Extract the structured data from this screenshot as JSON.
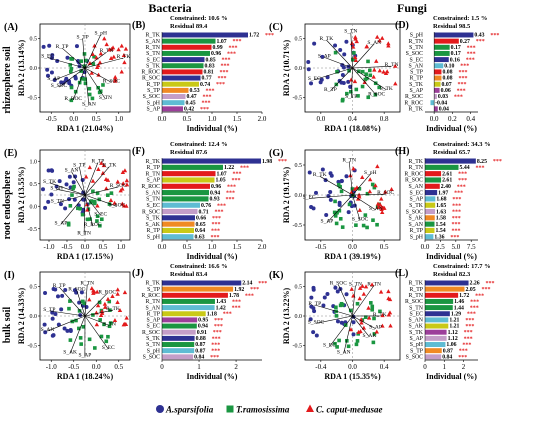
{
  "headers": {
    "bacteria": "Bacteria",
    "fungi": "Fungi"
  },
  "rows": [
    "rhizosphere soil",
    "root endosphere",
    "bulk soil"
  ],
  "legend": [
    {
      "label": "A.sparsifolia",
      "color": "#2e3192",
      "shape": "circle"
    },
    {
      "label": "T.ramosissima",
      "color": "#1a9641",
      "shape": "square"
    },
    {
      "label": "C. caput-medusae",
      "color": "#e31a1c",
      "shape": "triangle"
    }
  ],
  "colors": {
    "asparsifolia": "#2e3192",
    "tramosissima": "#1a9641",
    "ccaputmedusae": "#e31a1c",
    "sig": "#e31a1c"
  },
  "chart_data": [
    {
      "type": "scatter",
      "panel": "(A)",
      "xlabel": "RDA 1 (21.04%)",
      "ylabel": "RDA 2 (13.14%)",
      "xticks": [
        "-0.5",
        "0.0",
        "0.5",
        "1.0"
      ],
      "yticks": [
        "-0.5",
        "0.0",
        "0.5"
      ],
      "vectors": [
        "R_TK",
        "R_TN",
        "S_pH",
        "S_TP",
        "R_TP",
        "S_EC",
        "S_AP",
        "S_SOC",
        "R_ROC",
        "S_AN",
        "S_TN",
        "R_SOC"
      ]
    },
    {
      "type": "bar",
      "panel": "(B)",
      "constrained": "Constrained: 10.6 %",
      "residual": "Residual 89.4",
      "xlabel": "Individual (%)",
      "xticks": [
        "0.0",
        "0.5",
        "1.0",
        "1.5",
        "2.0"
      ],
      "xlim": [
        0,
        2.0
      ],
      "categories": [
        "R_TK",
        "S_AN",
        "R_TN",
        "S_TN",
        "S_EC",
        "S_TK",
        "R_ROC",
        "R_SOC",
        "R_TP",
        "S_TP",
        "S_SOC",
        "S_pH",
        "S_AP"
      ],
      "values": [
        1.72,
        1.07,
        0.99,
        0.96,
        0.85,
        0.83,
        0.81,
        0.77,
        0.74,
        0.53,
        0.47,
        0.45,
        0.42
      ],
      "sig": [
        "***",
        "***",
        "***",
        "***",
        "***",
        "***",
        "***",
        "***",
        "***",
        "***",
        "***",
        "***",
        "***"
      ],
      "colors": [
        "#2e3192",
        "#1a9641",
        "#e31a1c",
        "#1a9641",
        "#2e3192",
        "#1a9641",
        "#e31a1c",
        "#2e3192",
        "#c9c917",
        "#f08a24",
        "#c49ec8",
        "#5fbcd3",
        "#9c3f9a"
      ]
    },
    {
      "type": "scatter",
      "panel": "(C)",
      "xlabel": "RDA 1 (18.08%)",
      "ylabel": "RDA 2 (10.71%)",
      "xticks": [
        "0.0",
        "0.4",
        "0.8"
      ],
      "yticks": [
        "-0.5",
        "0.0",
        "0.5"
      ],
      "vectors": [
        "R_TN",
        "S_AN",
        "S_TN",
        "R_TK",
        "S_AP",
        "S_EC",
        "R_TP",
        "S_TP",
        "R_SOC",
        "S_TK"
      ]
    },
    {
      "type": "bar",
      "panel": "(D)",
      "constrained": "Constrained: 1.5 %",
      "residual": "Residual 98.5",
      "xlabel": "Individual (%)",
      "xticks": [
        "0.0",
        "0.2",
        "0.4"
      ],
      "xlim": [
        -0.1,
        0.48
      ],
      "categories": [
        "S_pH",
        "R_TN",
        "S_TN",
        "S_SOC",
        "S_EC",
        "S_AN",
        "S_TP",
        "R_TP",
        "S_TK",
        "S_AP",
        "R_SOC",
        "R_ROC",
        "R_TK"
      ],
      "values": [
        0.43,
        0.27,
        0.17,
        0.17,
        0.16,
        0.1,
        0.08,
        0.08,
        0.07,
        0.06,
        0.03,
        -0.04,
        0.04
      ],
      "sig": [
        "***",
        "***",
        "***",
        "***",
        "***",
        "***",
        "***",
        "***",
        "***",
        "***",
        "***",
        "",
        ""
      ],
      "colors": [
        "#2e3192",
        "#e31a1c",
        "#1a9641",
        "#1a9641",
        "#2e3192",
        "#5fbcd3",
        "#e31a1c",
        "#f08a24",
        "#c9c917",
        "#9c3f9a",
        "#c49ec8",
        "#5fbcd3",
        "#9c3f9a"
      ]
    },
    {
      "type": "scatter",
      "panel": "(E)",
      "xlabel": "RDA 1 (17.15%)",
      "ylabel": "RDA 2 (13.55%)",
      "xticks": [
        "-1.0",
        "-0.5",
        "0.0",
        "0.5",
        "1.0"
      ],
      "yticks": [
        "-0.5",
        "0.0",
        "0.5",
        "1.0"
      ],
      "vectors": [
        "R_SOC",
        "R_TK",
        "R_TP",
        "S_TP",
        "S_AN",
        "S_TK",
        "S_pH",
        "S_TN",
        "S_AP",
        "R_TN",
        "R_ROC",
        "S_EC",
        "S_SOC"
      ]
    },
    {
      "type": "bar",
      "panel": "(F)",
      "constrained": "Constrained: 12.4 %",
      "residual": "Residual 87.6",
      "xlabel": "Individual (%)",
      "xticks": [
        "0.0",
        "0.5",
        "1.0",
        "1.5",
        "2.0"
      ],
      "xlim": [
        0,
        2.0
      ],
      "categories": [
        "R_TK",
        "R_TP",
        "R_TN",
        "S_AP",
        "R_ROC",
        "S_AN",
        "S_TN",
        "S_EC",
        "R_SOC",
        "S_TK",
        "S_AK",
        "R_TP",
        "S_pH"
      ],
      "values": [
        1.98,
        1.22,
        1.07,
        1.05,
        0.96,
        0.94,
        0.93,
        0.76,
        0.71,
        0.66,
        0.65,
        0.64,
        0.63
      ],
      "sig": [
        "***",
        "***",
        "***",
        "***",
        "***",
        "***",
        "***",
        "***",
        "***",
        "***",
        "***",
        "***",
        "***"
      ],
      "colors": [
        "#2e3192",
        "#1a9641",
        "#e31a1c",
        "#c9c917",
        "#e31a1c",
        "#1a9641",
        "#1a9641",
        "#5fbcd3",
        "#c49ec8",
        "#2e3192",
        "#f08a24",
        "#c9c917",
        "#5fbcd3"
      ]
    },
    {
      "type": "scatter",
      "panel": "(G)",
      "xlabel": "RDA 1 (39.19%)",
      "ylabel": "RDA 2 (19.17%)",
      "xticks": [
        "-0.5",
        "0.0",
        "0.5"
      ],
      "yticks": [
        "-0.5",
        "0.0",
        "0.5"
      ],
      "vectors": [
        "R_SOC",
        "S_pH",
        "R_TN",
        "R_TK",
        "S_EC",
        "S_AP",
        "S_SOC",
        "S_AN"
      ]
    },
    {
      "type": "bar",
      "panel": "(H)",
      "constrained": "Constrained: 34.3 %",
      "residual": "Residual 65.7",
      "xlabel": "Individual (%)",
      "xticks": [
        "0.0",
        "2.5",
        "5.0",
        "7.5"
      ],
      "xlim": [
        0,
        8.6
      ],
      "categories": [
        "R_TK",
        "R_TN",
        "R_ROC",
        "R_SOC",
        "S_AN",
        "S_EC",
        "S_AP",
        "S_TK",
        "S_SOC",
        "S_AK",
        "S_AN",
        "R_TP",
        "S_pH"
      ],
      "values": [
        8.25,
        5.44,
        2.61,
        2.61,
        2.4,
        1.97,
        1.68,
        1.65,
        1.63,
        1.58,
        1.54,
        1.54,
        1.36
      ],
      "sig": [
        "***",
        "***",
        "***",
        "***",
        "***",
        "***",
        "***",
        "***",
        "***",
        "***",
        "***",
        "***",
        "***"
      ],
      "colors": [
        "#2e3192",
        "#1a9641",
        "#e31a1c",
        "#1a9641",
        "#e31a1c",
        "#2e3192",
        "#5fbcd3",
        "#c9c917",
        "#c49ec8",
        "#f08a24",
        "#1a9641",
        "#c9c917",
        "#5fbcd3"
      ]
    },
    {
      "type": "scatter",
      "panel": "(I)",
      "xlabel": "RDA 1 (18.24%)",
      "ylabel": "RDA 2 (14.33%)",
      "xticks": [
        "-1.0",
        "-0.5",
        "0.0",
        "0.5"
      ],
      "yticks": [
        "-0.5",
        "0.0",
        "0.5"
      ],
      "vectors": [
        "R_TK",
        "R_ROC",
        "R_TN",
        "R_SOC",
        "R_TP",
        "S_TP",
        "S_AN",
        "S_AK",
        "S_AP",
        "S_EC",
        "S_TN"
      ]
    },
    {
      "type": "bar",
      "panel": "(J)",
      "constrained": "Constrained: 16.6 %",
      "residual": "Residual 83.4",
      "xlabel": "Individual (%)",
      "xticks": [
        "0",
        "1",
        "2"
      ],
      "xlim": [
        0,
        2.7
      ],
      "categories": [
        "R_TK",
        "S_TP",
        "R_ROC",
        "R_TN",
        "S_AN",
        "R_TP",
        "S_AP",
        "S_EC",
        "R_SOC",
        "S_TK",
        "S_TN",
        "S_pH",
        "S_SOC"
      ],
      "values": [
        2.14,
        1.92,
        1.78,
        1.43,
        1.42,
        1.18,
        0.95,
        0.94,
        0.91,
        0.88,
        0.87,
        0.87,
        0.84
      ],
      "sig": [
        "***",
        "***",
        "***",
        "***",
        "***",
        "***",
        "***",
        "***",
        "***",
        "***",
        "***",
        "***",
        "***"
      ],
      "colors": [
        "#2e3192",
        "#f08a24",
        "#e31a1c",
        "#1a9641",
        "#5fbcd3",
        "#c9c917",
        "#9c3f9a",
        "#1a9641",
        "#c49ec8",
        "#2e3192",
        "#1a9641",
        "#5fbcd3",
        "#c49ec8"
      ]
    },
    {
      "type": "scatter",
      "panel": "(K)",
      "xlabel": "RDA 1 (15.35%)",
      "ylabel": "RDA 2 (13.22%)",
      "xticks": [
        "-0.4",
        "0.0",
        "0.4"
      ],
      "yticks": [
        "-0.5",
        "0.0",
        "0.5"
      ],
      "vectors": [
        "R_TK",
        "R_TN",
        "S_TN",
        "R_SOC",
        "R_TP",
        "S_SOC",
        "S_EC",
        "S_AN",
        "S_AK",
        "S_AP"
      ]
    },
    {
      "type": "bar",
      "panel": "(L)",
      "constrained": "Constrained: 17.7 %",
      "residual": "Residual 82.3",
      "xlabel": "Individual (%)",
      "xticks": [
        "0",
        "1",
        "2"
      ],
      "xlim": [
        0,
        2.75
      ],
      "categories": [
        "R_TK",
        "R_TP",
        "R_TN",
        "R_SOC",
        "S_TN",
        "S_EC",
        "S_AN",
        "S_AK",
        "S_TK",
        "S_AP",
        "S_pH",
        "S_TP",
        "S_SOC"
      ],
      "values": [
        2.26,
        2.05,
        1.72,
        1.46,
        1.44,
        1.29,
        1.21,
        1.21,
        1.12,
        1.12,
        1.06,
        0.87,
        0.84
      ],
      "sig": [
        "***",
        "***",
        "***",
        "***",
        "***",
        "***",
        "***",
        "***",
        "***",
        "***",
        "***",
        "***",
        "***"
      ],
      "colors": [
        "#2e3192",
        "#f08a24",
        "#e31a1c",
        "#1a9641",
        "#1a9641",
        "#2e3192",
        "#5fbcd3",
        "#c9c917",
        "#9c3f9a",
        "#c49ec8",
        "#5fbcd3",
        "#f08a24",
        "#c49ec8"
      ]
    }
  ]
}
